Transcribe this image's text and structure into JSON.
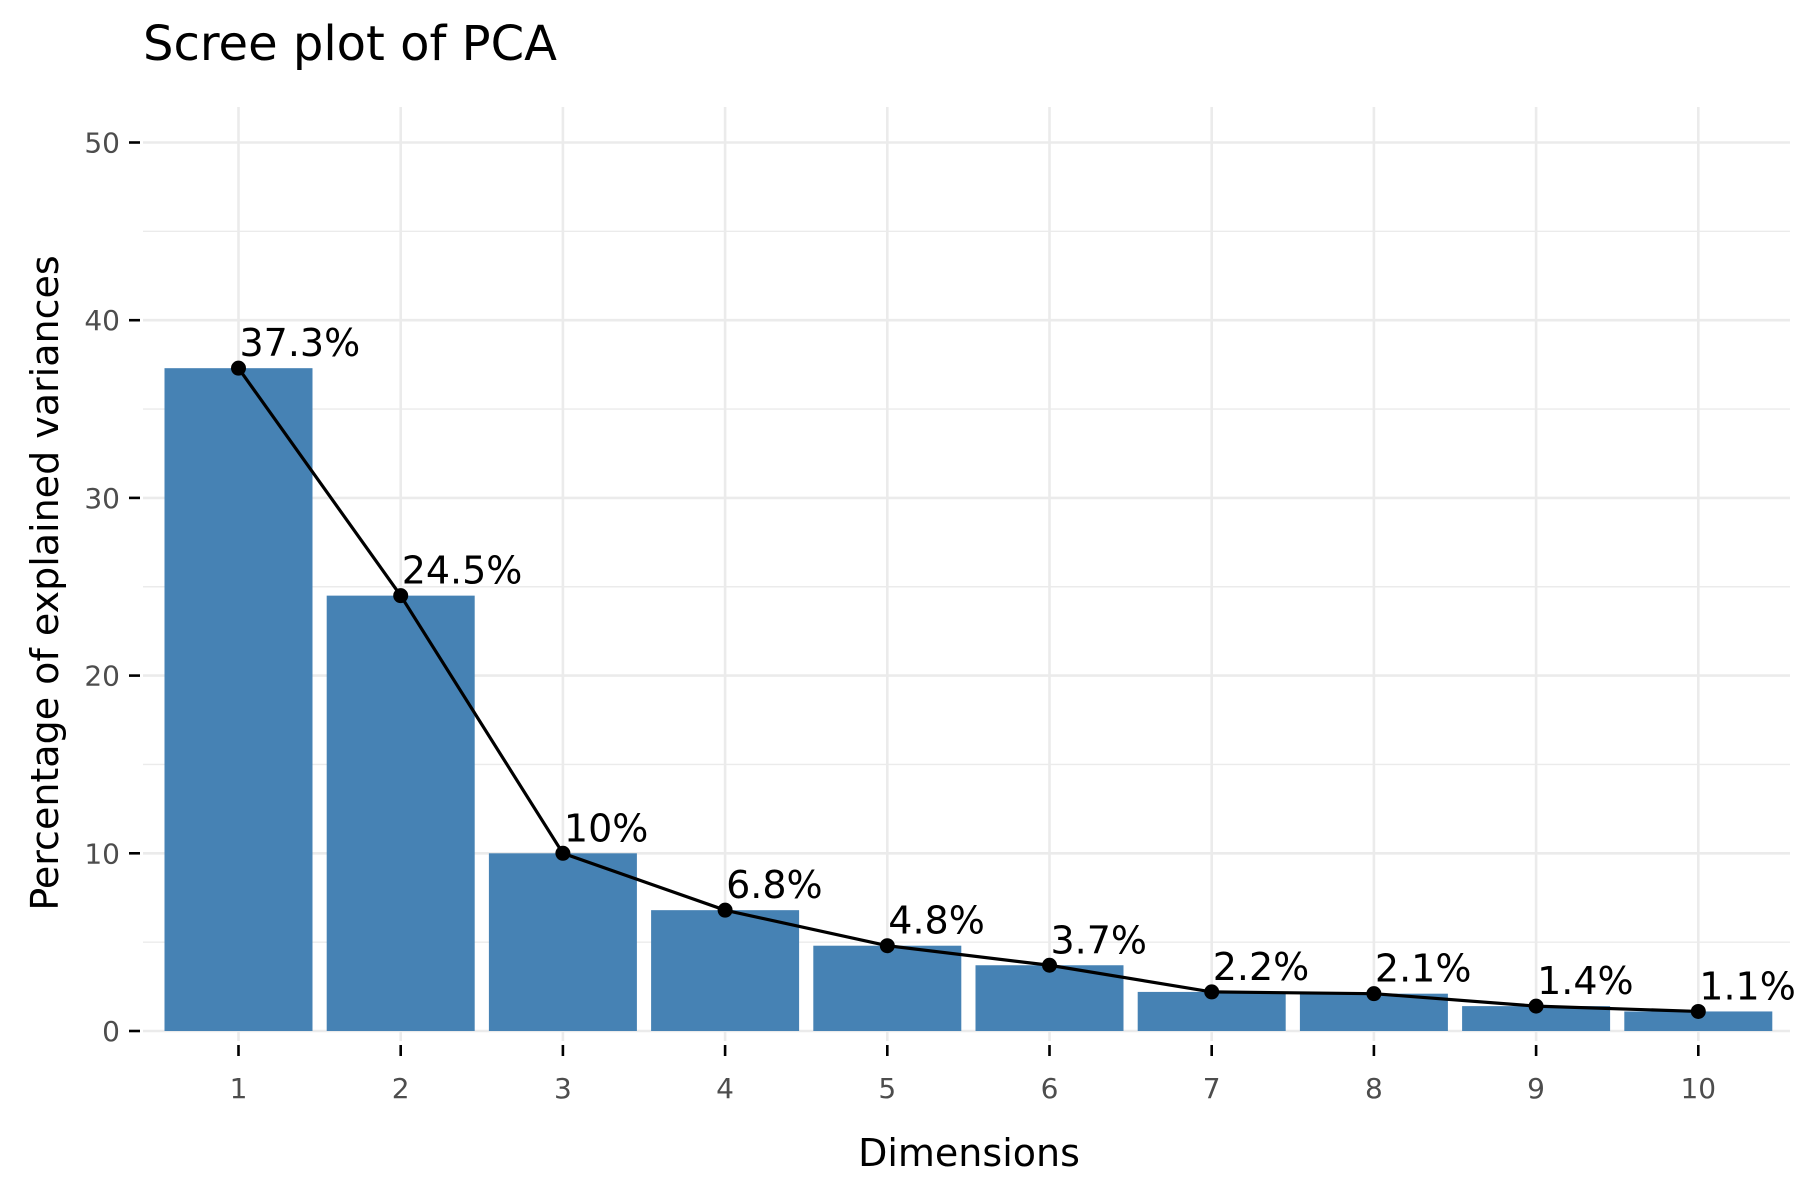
{
  "chart_data": {
    "type": "bar",
    "title": "Scree plot of PCA",
    "xlabel": "Dimensions",
    "ylabel": "Percentage of explained variances",
    "categories": [
      "1",
      "2",
      "3",
      "4",
      "5",
      "6",
      "7",
      "8",
      "9",
      "10"
    ],
    "values": [
      37.3,
      24.5,
      10.0,
      6.8,
      4.8,
      3.7,
      2.2,
      2.1,
      1.4,
      1.1
    ],
    "labels": [
      "37.3%",
      "24.5%",
      "10%",
      "6.8%",
      "4.8%",
      "3.7%",
      "2.2%",
      "2.1%",
      "1.4%",
      "1.1%"
    ],
    "ylim": [
      0,
      52
    ],
    "yticks": [
      0,
      10,
      20,
      30,
      40,
      50
    ],
    "grid": true,
    "line_overlay": true,
    "colors": {
      "bar": "#4682B4",
      "line": "#000000",
      "grid": "#ebebeb"
    }
  }
}
